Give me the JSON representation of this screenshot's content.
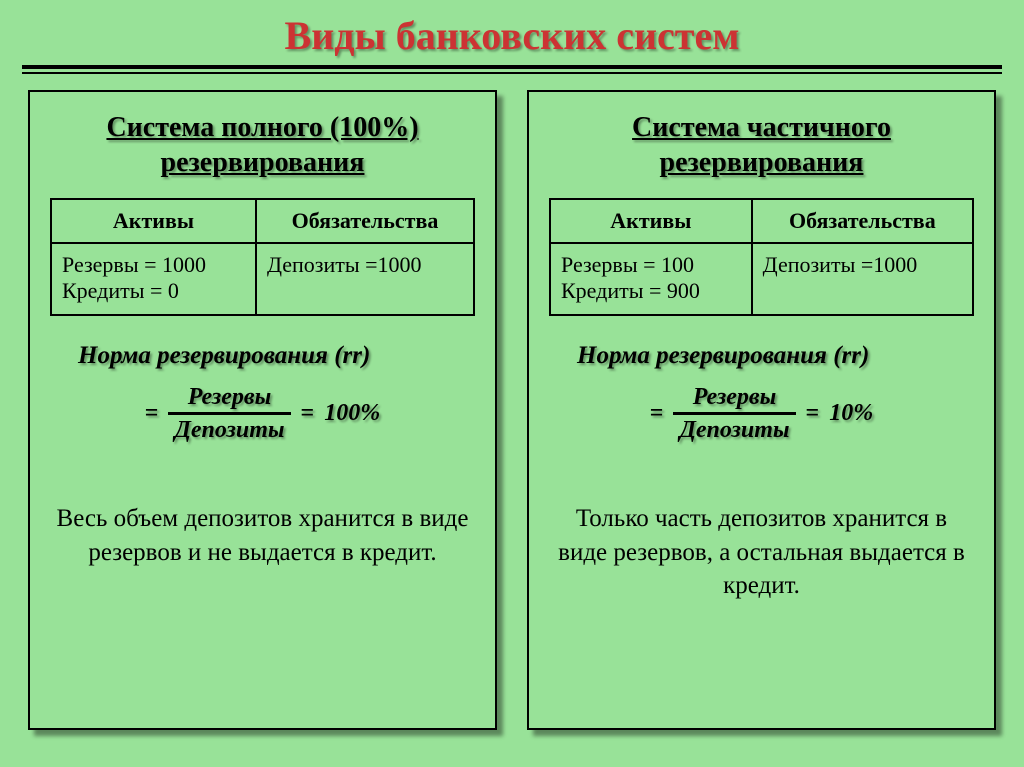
{
  "title": "Виды банковских систем",
  "colors": {
    "background": "#98e298",
    "title_color": "#cc3333",
    "text_color": "#000000",
    "border_color": "#000000"
  },
  "left": {
    "title_l1": "Система полного (100%)",
    "title_l2": "резервирования",
    "table": {
      "col1": "Активы",
      "col2": "Обязательства",
      "assets_l1": "Резервы = 1000",
      "assets_l2": "Кредиты = 0",
      "liab_l1": "Депозиты =1000"
    },
    "norm_label": "Норма резервирования ",
    "norm_symbol": "(rr)",
    "formula": {
      "eq1": "=",
      "num": "Резервы",
      "den": "Депозиты",
      "eq2": "=",
      "result": "100%"
    },
    "desc": "Весь объем депозитов хранится в виде резервов и не выдается в кредит."
  },
  "right": {
    "title_l1": "Система частичного",
    "title_l2": "резервирования",
    "table": {
      "col1": "Активы",
      "col2": "Обязательства",
      "assets_l1": "Резервы = 100",
      "assets_l2": "Кредиты = 900",
      "liab_l1": "Депозиты =1000"
    },
    "norm_label": "Норма резервирования ",
    "norm_symbol": "(rr)",
    "formula": {
      "eq1": "=",
      "num": "Резервы",
      "den": "Депозиты",
      "eq2": "=",
      "result": "10%"
    },
    "desc": "Только часть депозитов хранится в виде резервов, а остальная выдается в кредит."
  }
}
